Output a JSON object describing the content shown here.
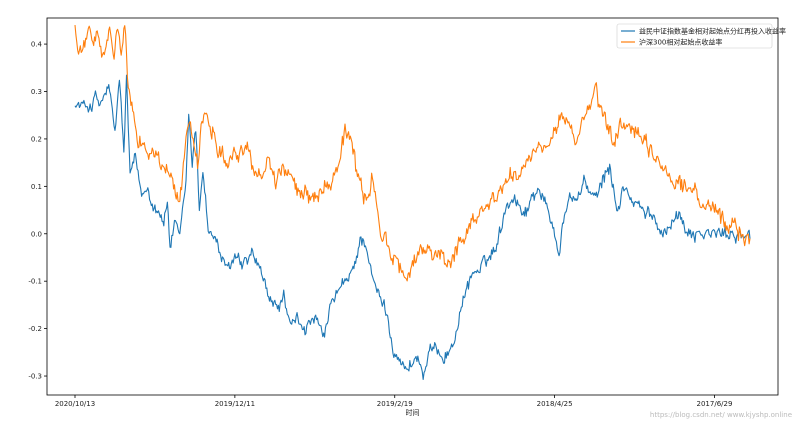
{
  "chart_data": {
    "type": "line",
    "xlabel": "时间",
    "ylabel": "",
    "ylim": [
      -0.34,
      0.455
    ],
    "grid": false,
    "legend_position": "top-right",
    "x_tick_labels": [
      "2020/10/13",
      "2019/12/11",
      "2019/2/19",
      "2018/4/25",
      "2017/6/29"
    ],
    "x_tick_index": [
      0,
      180,
      360,
      540,
      720
    ],
    "n_points": 761,
    "y_ticks": [
      -0.3,
      -0.2,
      -0.1,
      0.0,
      0.1,
      0.2,
      0.3,
      0.4
    ],
    "y_tick_labels": [
      "-0.3",
      "-0.2",
      "-0.1",
      "0.0",
      "0.1",
      "0.2",
      "0.3",
      "0.4"
    ],
    "series": [
      {
        "name": "益民中证指数基金相对起始点分红再投入收益率",
        "color": "#1f77b4",
        "anchors": [
          [
            0,
            0.27
          ],
          [
            20,
            0.27
          ],
          [
            22,
            0.29
          ],
          [
            28,
            0.27
          ],
          [
            38,
            0.31
          ],
          [
            45,
            0.21
          ],
          [
            50,
            0.33
          ],
          [
            55,
            0.17
          ],
          [
            58,
            0.33
          ],
          [
            62,
            0.12
          ],
          [
            68,
            0.16
          ],
          [
            75,
            0.08
          ],
          [
            82,
            0.1
          ],
          [
            88,
            0.06
          ],
          [
            95,
            0.05
          ],
          [
            100,
            0.02
          ],
          [
            104,
            0.07
          ],
          [
            107,
            -0.03
          ],
          [
            112,
            0.02
          ],
          [
            118,
            -0.01
          ],
          [
            125,
            0.11
          ],
          [
            128,
            0.25
          ],
          [
            132,
            0.15
          ],
          [
            136,
            0.22
          ],
          [
            140,
            0.05
          ],
          [
            144,
            0.14
          ],
          [
            150,
            0.01
          ],
          [
            160,
            -0.02
          ],
          [
            170,
            -0.08
          ],
          [
            180,
            -0.05
          ],
          [
            190,
            -0.07
          ],
          [
            200,
            -0.04
          ],
          [
            210,
            -0.09
          ],
          [
            220,
            -0.14
          ],
          [
            228,
            -0.16
          ],
          [
            235,
            -0.13
          ],
          [
            242,
            -0.2
          ],
          [
            250,
            -0.18
          ],
          [
            260,
            -0.2
          ],
          [
            270,
            -0.18
          ],
          [
            280,
            -0.22
          ],
          [
            290,
            -0.14
          ],
          [
            300,
            -0.11
          ],
          [
            308,
            -0.1
          ],
          [
            315,
            -0.06
          ],
          [
            322,
            -0.01
          ],
          [
            328,
            -0.02
          ],
          [
            335,
            -0.1
          ],
          [
            342,
            -0.13
          ],
          [
            350,
            -0.16
          ],
          [
            358,
            -0.24
          ],
          [
            365,
            -0.26
          ],
          [
            372,
            -0.29
          ],
          [
            380,
            -0.27
          ],
          [
            386,
            -0.26
          ],
          [
            392,
            -0.3
          ],
          [
            400,
            -0.25
          ],
          [
            408,
            -0.24
          ],
          [
            415,
            -0.26
          ],
          [
            425,
            -0.24
          ],
          [
            432,
            -0.18
          ],
          [
            440,
            -0.12
          ],
          [
            448,
            -0.08
          ],
          [
            455,
            -0.08
          ],
          [
            462,
            -0.06
          ],
          [
            470,
            -0.04
          ],
          [
            478,
            0.0
          ],
          [
            485,
            0.06
          ],
          [
            495,
            0.08
          ],
          [
            502,
            0.05
          ],
          [
            510,
            0.05
          ],
          [
            515,
            0.08
          ],
          [
            522,
            0.1
          ],
          [
            530,
            0.06
          ],
          [
            538,
            0.02
          ],
          [
            545,
            -0.04
          ],
          [
            550,
            0.03
          ],
          [
            558,
            0.08
          ],
          [
            565,
            0.07
          ],
          [
            572,
            0.11
          ],
          [
            580,
            0.09
          ],
          [
            588,
            0.07
          ],
          [
            595,
            0.12
          ],
          [
            602,
            0.14
          ],
          [
            610,
            0.05
          ],
          [
            618,
            0.1
          ],
          [
            626,
            0.07
          ],
          [
            634,
            0.06
          ],
          [
            642,
            0.04
          ],
          [
            650,
            0.04
          ],
          [
            658,
            0.01
          ],
          [
            666,
            0.01
          ],
          [
            672,
            0.03
          ],
          [
            680,
            0.04
          ],
          [
            688,
            0.01
          ],
          [
            700,
            0.0
          ],
          [
            715,
            0.0
          ],
          [
            730,
            0.0
          ],
          [
            745,
            0.0
          ],
          [
            760,
            -0.01
          ]
        ],
        "noise": 0.012
      },
      {
        "name": "沪深300相对起始点收益率",
        "color": "#ff7f0e",
        "anchors": [
          [
            0,
            0.44
          ],
          [
            4,
            0.37
          ],
          [
            10,
            0.39
          ],
          [
            14,
            0.43
          ],
          [
            20,
            0.41
          ],
          [
            26,
            0.41
          ],
          [
            32,
            0.37
          ],
          [
            38,
            0.42
          ],
          [
            44,
            0.38
          ],
          [
            48,
            0.44
          ],
          [
            52,
            0.38
          ],
          [
            56,
            0.43
          ],
          [
            60,
            0.3
          ],
          [
            65,
            0.26
          ],
          [
            72,
            0.2
          ],
          [
            80,
            0.18
          ],
          [
            90,
            0.17
          ],
          [
            98,
            0.14
          ],
          [
            105,
            0.13
          ],
          [
            112,
            0.1
          ],
          [
            118,
            0.07
          ],
          [
            122,
            0.13
          ],
          [
            126,
            0.22
          ],
          [
            130,
            0.24
          ],
          [
            134,
            0.2
          ],
          [
            138,
            0.15
          ],
          [
            142,
            0.22
          ],
          [
            148,
            0.25
          ],
          [
            155,
            0.22
          ],
          [
            162,
            0.18
          ],
          [
            170,
            0.16
          ],
          [
            178,
            0.17
          ],
          [
            186,
            0.17
          ],
          [
            194,
            0.18
          ],
          [
            202,
            0.14
          ],
          [
            210,
            0.12
          ],
          [
            218,
            0.17
          ],
          [
            226,
            0.11
          ],
          [
            234,
            0.14
          ],
          [
            242,
            0.13
          ],
          [
            250,
            0.08
          ],
          [
            258,
            0.09
          ],
          [
            266,
            0.08
          ],
          [
            274,
            0.09
          ],
          [
            282,
            0.1
          ],
          [
            290,
            0.12
          ],
          [
            298,
            0.16
          ],
          [
            304,
            0.22
          ],
          [
            310,
            0.2
          ],
          [
            316,
            0.14
          ],
          [
            322,
            0.1
          ],
          [
            328,
            0.06
          ],
          [
            334,
            0.12
          ],
          [
            340,
            0.05
          ],
          [
            346,
            0.0
          ],
          [
            352,
            -0.02
          ],
          [
            358,
            -0.06
          ],
          [
            364,
            -0.06
          ],
          [
            370,
            -0.1
          ],
          [
            376,
            -0.08
          ],
          [
            382,
            -0.06
          ],
          [
            388,
            -0.04
          ],
          [
            394,
            -0.03
          ],
          [
            402,
            -0.05
          ],
          [
            410,
            -0.03
          ],
          [
            418,
            -0.06
          ],
          [
            426,
            -0.05
          ],
          [
            434,
            -0.02
          ],
          [
            442,
            0.01
          ],
          [
            450,
            0.04
          ],
          [
            458,
            0.05
          ],
          [
            466,
            0.06
          ],
          [
            474,
            0.08
          ],
          [
            482,
            0.1
          ],
          [
            490,
            0.12
          ],
          [
            498,
            0.13
          ],
          [
            506,
            0.14
          ],
          [
            514,
            0.16
          ],
          [
            522,
            0.17
          ],
          [
            530,
            0.18
          ],
          [
            538,
            0.2
          ],
          [
            546,
            0.25
          ],
          [
            554,
            0.24
          ],
          [
            562,
            0.2
          ],
          [
            570,
            0.22
          ],
          [
            578,
            0.26
          ],
          [
            586,
            0.3
          ],
          [
            592,
            0.26
          ],
          [
            598,
            0.22
          ],
          [
            606,
            0.2
          ],
          [
            614,
            0.22
          ],
          [
            622,
            0.24
          ],
          [
            630,
            0.21
          ],
          [
            638,
            0.2
          ],
          [
            646,
            0.17
          ],
          [
            654,
            0.16
          ],
          [
            662,
            0.14
          ],
          [
            670,
            0.12
          ],
          [
            678,
            0.11
          ],
          [
            686,
            0.1
          ],
          [
            694,
            0.1
          ],
          [
            702,
            0.07
          ],
          [
            710,
            0.06
          ],
          [
            718,
            0.05
          ],
          [
            726,
            0.03
          ],
          [
            734,
            0.02
          ],
          [
            742,
            0.02
          ],
          [
            750,
            0.0
          ],
          [
            760,
            -0.01
          ]
        ],
        "noise": 0.016
      }
    ]
  },
  "watermark": "https://blog.csdn.net/ www.kjyshp.online"
}
